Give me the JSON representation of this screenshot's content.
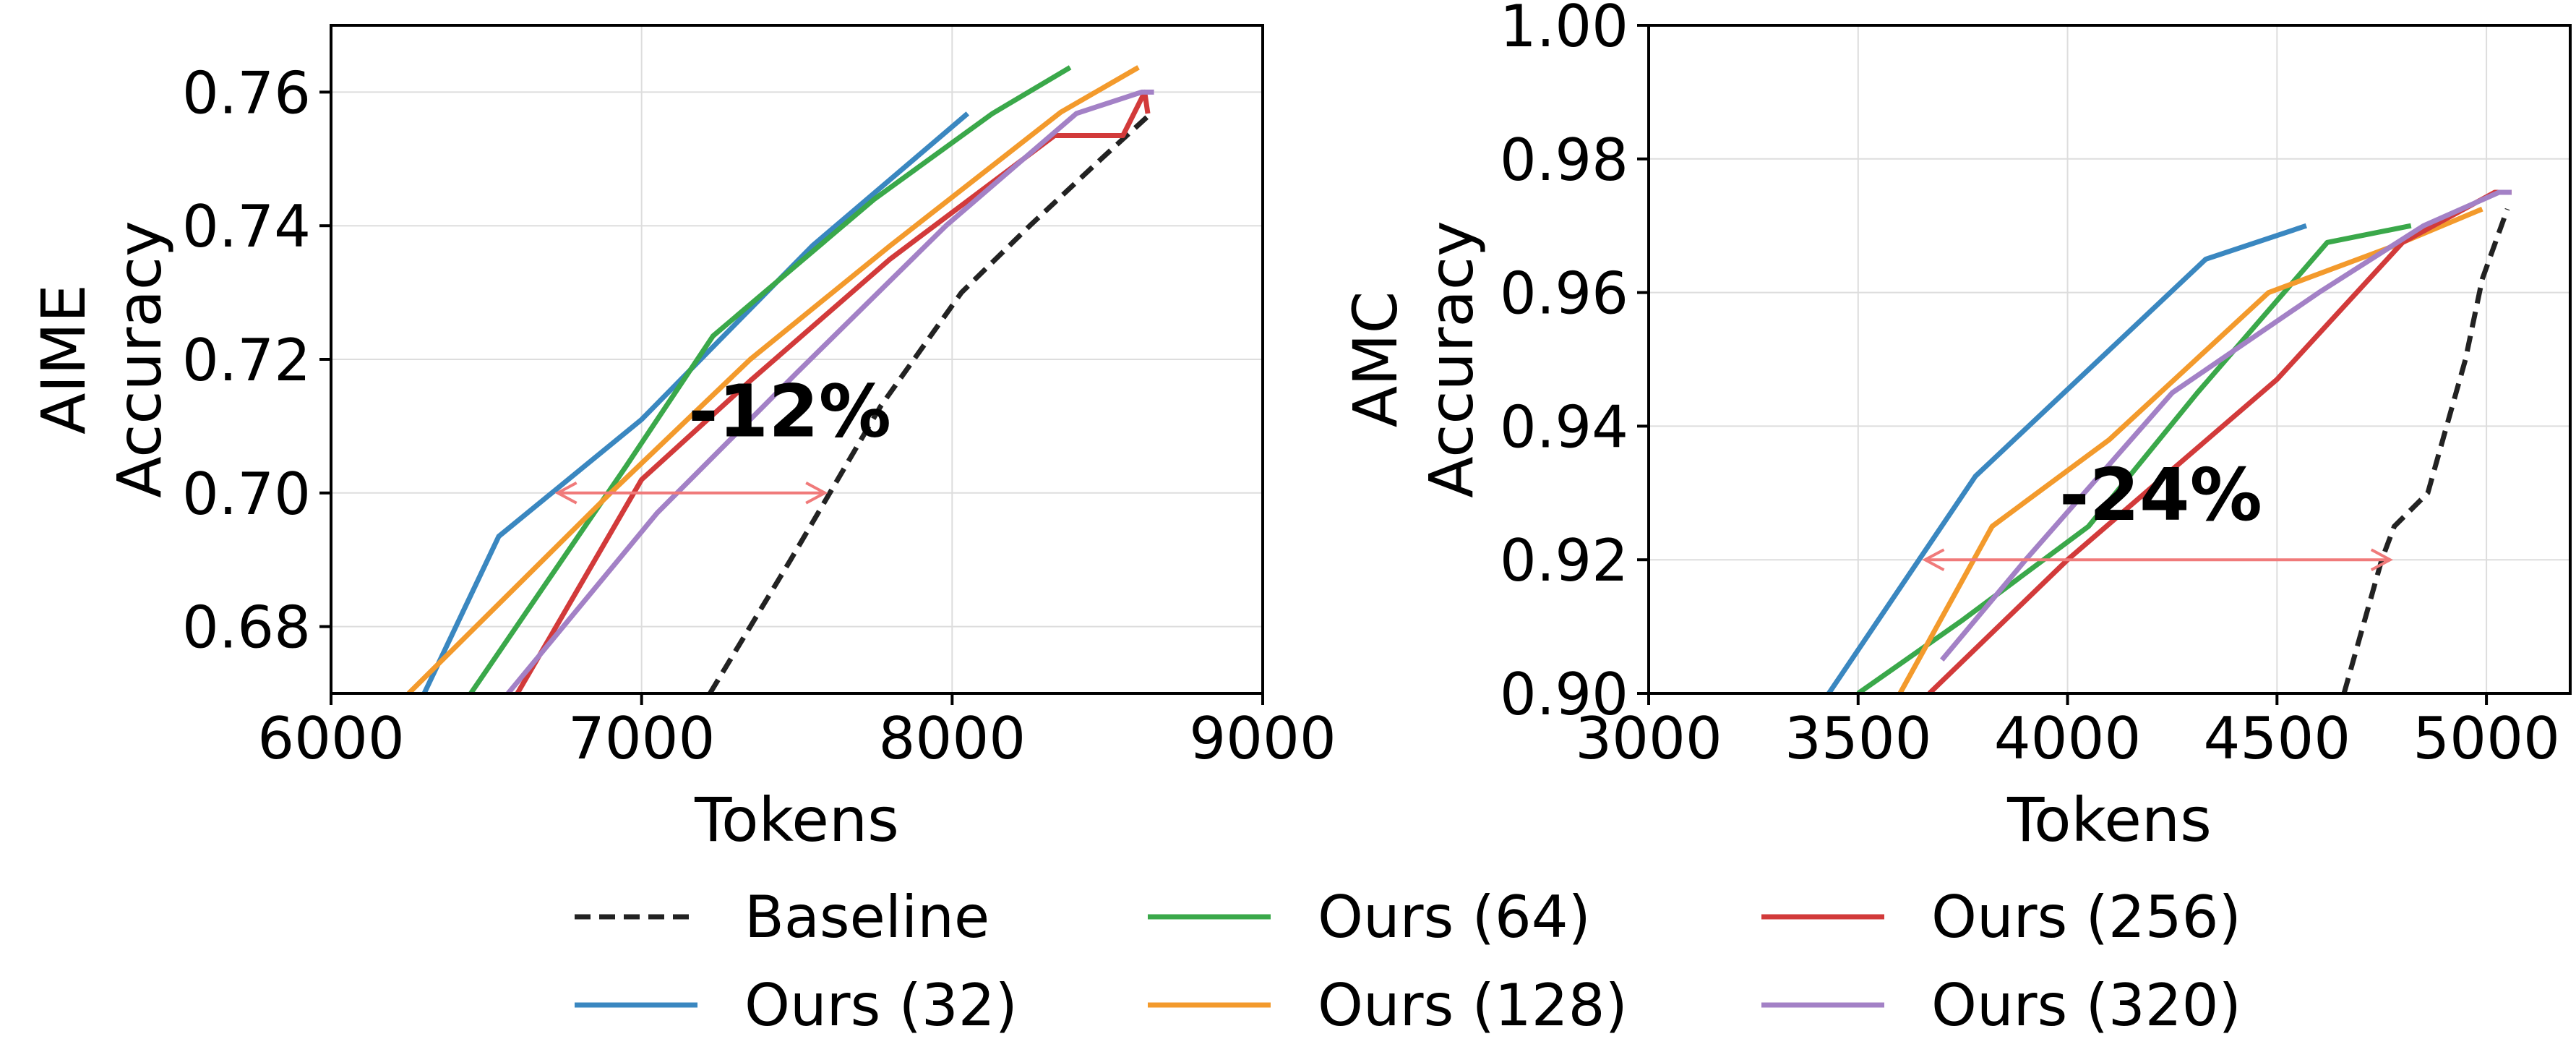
{
  "chart_data": [
    {
      "type": "line",
      "title": "",
      "xlabel": "Tokens",
      "ylabel": "AIME\nAccuracy",
      "xlim": [
        6000,
        9000
      ],
      "ylim": [
        0.67,
        0.77
      ],
      "xticks": [
        6000,
        7000,
        8000,
        9000
      ],
      "xtick_labels": [
        "6000",
        "7000",
        "8000",
        "9000"
      ],
      "yticks": [
        0.68,
        0.7,
        0.72,
        0.74,
        0.76
      ],
      "ytick_labels": [
        "0.68",
        "0.70",
        "0.72",
        "0.74",
        "0.76"
      ],
      "grid": true,
      "annotation": {
        "text": "-12%",
        "text_x": 7150,
        "text_y": 0.7085,
        "arrow_x": [
          6730,
          7590
        ],
        "arrow_y": 0.7
      },
      "series": [
        {
          "name": "Baseline",
          "x": [
            7220,
            7480,
            7770,
            8030,
            8250,
            8480,
            8640
          ],
          "y": [
            0.67,
            0.69,
            0.713,
            0.73,
            0.74,
            0.75,
            0.7568
          ]
        },
        {
          "name": "Ours (32)",
          "x": [
            6300,
            6540,
            7000,
            7550,
            8050
          ],
          "y": [
            0.67,
            0.6935,
            0.711,
            0.737,
            0.7568
          ]
        },
        {
          "name": "Ours (64)",
          "x": [
            6450,
            6950,
            7230,
            7750,
            8130,
            8380
          ],
          "y": [
            0.67,
            0.704,
            0.7235,
            0.744,
            0.7568,
            0.7637
          ]
        },
        {
          "name": "Ours (128)",
          "x": [
            6250,
            6900,
            7350,
            7800,
            8350,
            8600
          ],
          "y": [
            0.67,
            0.7,
            0.72,
            0.737,
            0.757,
            0.7637
          ]
        },
        {
          "name": "Ours (256)",
          "x": [
            6600,
            7000,
            7350,
            7800,
            8330,
            8550,
            8620,
            8630
          ],
          "y": [
            0.67,
            0.702,
            0.7168,
            0.735,
            0.7535,
            0.7535,
            0.76,
            0.7568
          ]
        },
        {
          "name": "Ours (320)",
          "x": [
            6570,
            7050,
            7500,
            7980,
            8400,
            8610,
            8650
          ],
          "y": [
            0.67,
            0.697,
            0.718,
            0.74,
            0.7568,
            0.76,
            0.76
          ]
        }
      ]
    },
    {
      "type": "line",
      "title": "",
      "xlabel": "Tokens",
      "ylabel": "AMC\nAccuracy",
      "xlim": [
        3000,
        5200
      ],
      "ylim": [
        0.9,
        1.0
      ],
      "xticks": [
        3000,
        3500,
        4000,
        4500,
        5000
      ],
      "xtick_labels": [
        "3000",
        "3500",
        "4000",
        "4500",
        "5000"
      ],
      "yticks": [
        0.9,
        0.92,
        0.94,
        0.96,
        0.98,
        1.0
      ],
      "ytick_labels": [
        "0.90",
        "0.92",
        "0.94",
        "0.96",
        "0.98",
        "1.00"
      ],
      "grid": true,
      "annotation": {
        "text": "-24%",
        "text_x": 3980,
        "text_y": 0.926,
        "arrow_x": [
          3660,
          4770
        ],
        "arrow_y": 0.92
      },
      "series": [
        {
          "name": "Baseline",
          "x": [
            4660,
            4750,
            4780,
            4860,
            4950,
            4990,
            5050
          ],
          "y": [
            0.9,
            0.92,
            0.925,
            0.93,
            0.95,
            0.962,
            0.9725
          ]
        },
        {
          "name": "Ours (32)",
          "x": [
            3430,
            3780,
            4330,
            4570
          ],
          "y": [
            0.9,
            0.9325,
            0.965,
            0.97
          ]
        },
        {
          "name": "Ours (64)",
          "x": [
            3500,
            3750,
            4050,
            4310,
            4620,
            4820
          ],
          "y": [
            0.9,
            0.911,
            0.925,
            0.945,
            0.9675,
            0.97
          ]
        },
        {
          "name": "Ours (128)",
          "x": [
            3600,
            3820,
            4100,
            4480,
            4780,
            4990
          ],
          "y": [
            0.9,
            0.925,
            0.938,
            0.96,
            0.967,
            0.9725
          ]
        },
        {
          "name": "Ours (256)",
          "x": [
            3670,
            4000,
            4500,
            4800,
            5020,
            5060
          ],
          "y": [
            0.9,
            0.92,
            0.947,
            0.9675,
            0.975,
            0.975
          ]
        },
        {
          "name": "Ours (320)",
          "x": [
            3700,
            3900,
            4250,
            4600,
            4850,
            5030,
            5060
          ],
          "y": [
            0.905,
            0.92,
            0.945,
            0.96,
            0.97,
            0.975,
            0.975
          ]
        }
      ]
    }
  ],
  "legend": [
    {
      "label": "Baseline",
      "color": "#222222",
      "dashed": true
    },
    {
      "label": "Ours (32)",
      "color": "#3a87c0",
      "dashed": false
    },
    {
      "label": "Ours (64)",
      "color": "#3aa84a",
      "dashed": false
    },
    {
      "label": "Ours (128)",
      "color": "#f39a2c",
      "dashed": false
    },
    {
      "label": "Ours (256)",
      "color": "#d23a3a",
      "dashed": false
    },
    {
      "label": "Ours (320)",
      "color": "#a381c6",
      "dashed": false
    }
  ],
  "colors": {
    "Baseline": "#222222",
    "Ours (32)": "#3a87c0",
    "Ours (64)": "#3aa84a",
    "Ours (128)": "#f39a2c",
    "Ours (256)": "#d23a3a",
    "Ours (320)": "#a381c6",
    "arrow": "#f07a7a",
    "grid": "#dddddd"
  }
}
